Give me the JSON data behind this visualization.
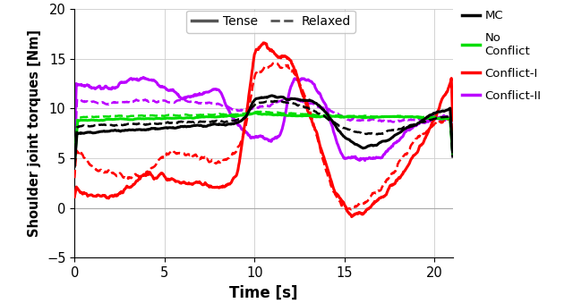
{
  "xlabel": "Time [s]",
  "ylabel": "Shoulder joint torques [Nm]",
  "xlim": [
    0,
    21.0
  ],
  "ylim": [
    -5,
    20
  ],
  "yticks": [
    -5,
    0,
    5,
    10,
    15,
    20
  ],
  "xticks": [
    0,
    5,
    10,
    15,
    20
  ],
  "colors": {
    "MC": "#000000",
    "NoConflict": "#00dd00",
    "ConflictI": "#ff0000",
    "ConflictII": "#bb00ff"
  },
  "lw_tense": 2.2,
  "lw_relaxed": 1.8
}
